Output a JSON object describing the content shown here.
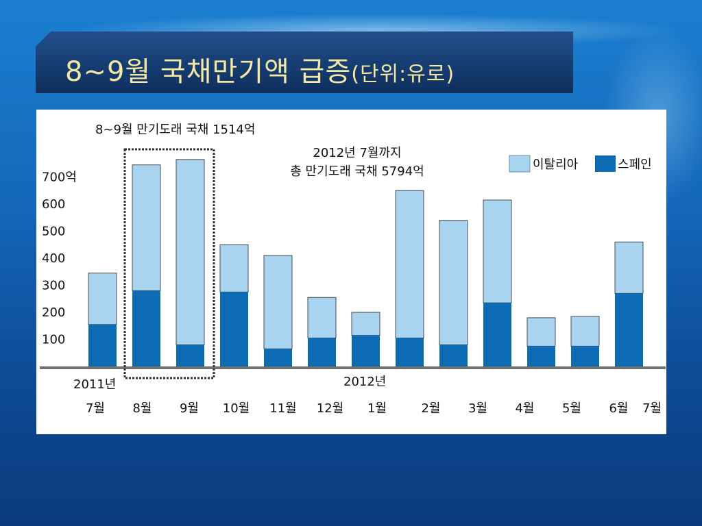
{
  "slide": {
    "title_main": "8~9월 국채만기액 급증",
    "title_unit": "(단위:유로)"
  },
  "annotations": {
    "box_label": "8~9월 만기도래 국채 1514억",
    "total_line1": "2012년 7월까지",
    "total_line2": "총 만기도래 국채 5794억",
    "year_2011": "2011년",
    "year_2012": "2012년"
  },
  "colors": {
    "italy": "#a9d4f0",
    "spain": "#0d6cb3",
    "title_text": "#f3e9a3"
  },
  "chart_data": {
    "type": "bar",
    "stacked": true,
    "categories": [
      "7월",
      "8월",
      "9월",
      "10월",
      "11월",
      "12월",
      "1월",
      "2월",
      "3월",
      "4월",
      "5월",
      "6월",
      "7월"
    ],
    "series": [
      {
        "name": "스페인",
        "values": [
          155,
          280,
          80,
          275,
          65,
          105,
          115,
          105,
          80,
          235,
          75,
          75,
          270
        ]
      },
      {
        "name": "이탈리아",
        "values": [
          190,
          465,
          685,
          175,
          345,
          150,
          85,
          545,
          460,
          380,
          105,
          110,
          190
        ]
      }
    ],
    "ylim": [
      0,
      760
    ],
    "yticks": [
      100,
      200,
      300,
      400,
      500,
      600,
      700
    ],
    "ytick_labels": [
      "100",
      "200",
      "300",
      "400",
      "500",
      "600",
      "700억"
    ],
    "legend": {
      "position": "top-right"
    }
  }
}
